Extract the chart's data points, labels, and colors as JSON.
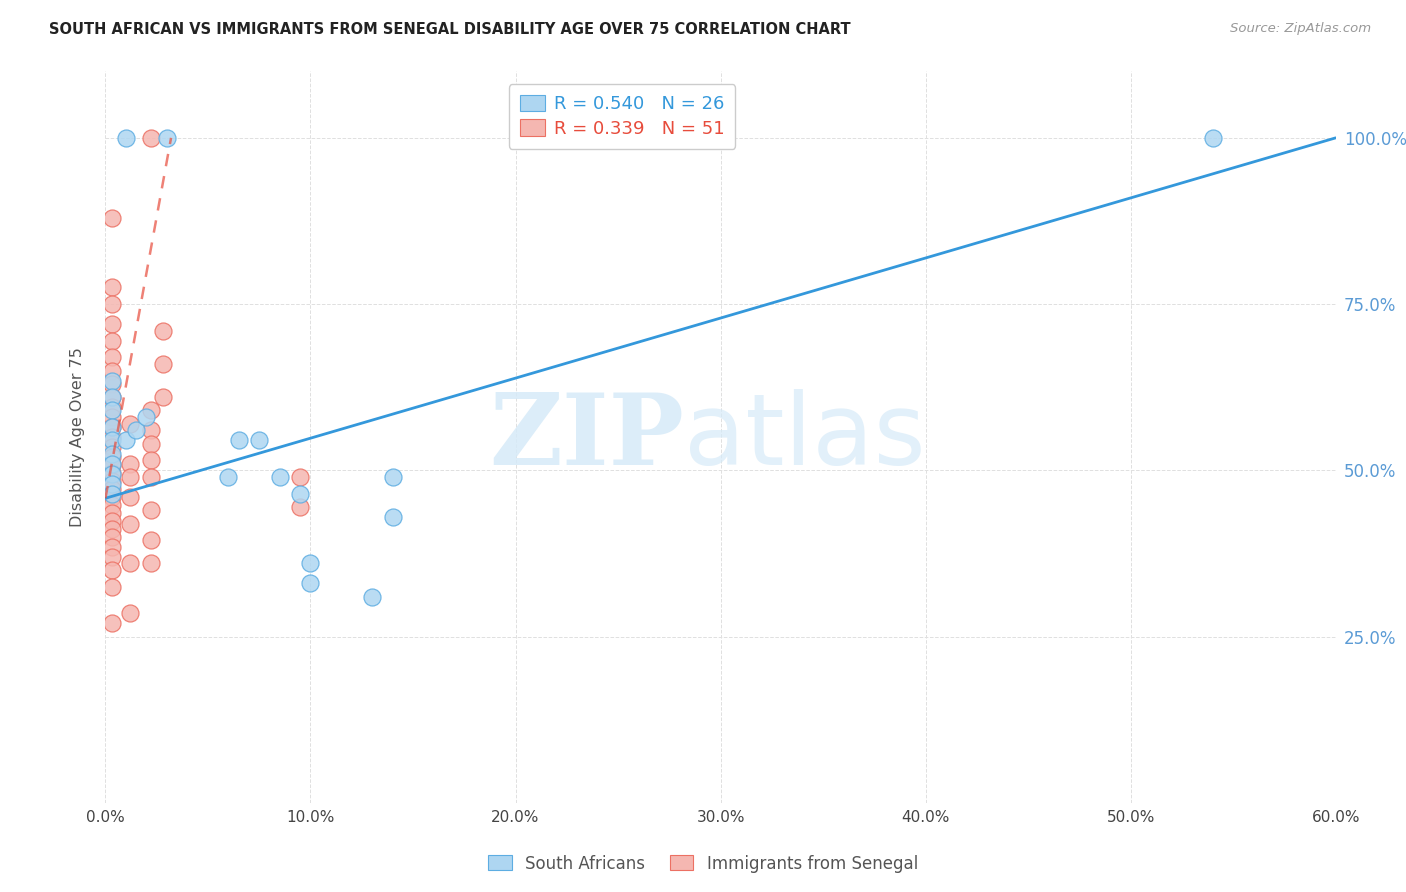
{
  "title": "SOUTH AFRICAN VS IMMIGRANTS FROM SENEGAL DISABILITY AGE OVER 75 CORRELATION CHART",
  "source": "Source: ZipAtlas.com",
  "ylabel": "Disability Age Over 75",
  "x_tick_labels": [
    "0.0%",
    "10.0%",
    "20.0%",
    "30.0%",
    "40.0%",
    "50.0%",
    "60.0%"
  ],
  "y_tick_labels_right": [
    "100.0%",
    "75.0%",
    "50.0%",
    "25.0%"
  ],
  "y_ticks_right": [
    1.0,
    0.75,
    0.5,
    0.25
  ],
  "xlim": [
    0.0,
    0.6
  ],
  "ylim": [
    0.0,
    1.1
  ],
  "legend_bottom": [
    "South Africans",
    "Immigrants from Senegal"
  ],
  "blue_R": 0.54,
  "blue_N": 26,
  "pink_R": 0.339,
  "pink_N": 51,
  "blue_fill_color": "#AED6F1",
  "blue_edge_color": "#5DADE2",
  "pink_fill_color": "#F5B7B1",
  "pink_edge_color": "#EC7063",
  "blue_line_color": "#3498DB",
  "pink_line_color": "#E74C3C",
  "watermark_zip_color": "#D6EAF8",
  "watermark_atlas_color": "#D6EAF8",
  "blue_scatter": [
    [
      0.01,
      1.0
    ],
    [
      0.03,
      1.0
    ],
    [
      0.003,
      0.635
    ],
    [
      0.003,
      0.61
    ],
    [
      0.003,
      0.59
    ],
    [
      0.003,
      0.565
    ],
    [
      0.003,
      0.545
    ],
    [
      0.003,
      0.525
    ],
    [
      0.003,
      0.51
    ],
    [
      0.003,
      0.495
    ],
    [
      0.003,
      0.48
    ],
    [
      0.003,
      0.465
    ],
    [
      0.01,
      0.545
    ],
    [
      0.015,
      0.56
    ],
    [
      0.02,
      0.58
    ],
    [
      0.065,
      0.545
    ],
    [
      0.075,
      0.545
    ],
    [
      0.14,
      0.49
    ],
    [
      0.095,
      0.465
    ],
    [
      0.14,
      0.43
    ],
    [
      0.06,
      0.49
    ],
    [
      0.085,
      0.49
    ],
    [
      0.1,
      0.36
    ],
    [
      0.1,
      0.33
    ],
    [
      0.13,
      0.31
    ],
    [
      0.54,
      1.0
    ]
  ],
  "pink_scatter": [
    [
      0.003,
      0.88
    ],
    [
      0.003,
      0.775
    ],
    [
      0.003,
      0.75
    ],
    [
      0.003,
      0.72
    ],
    [
      0.003,
      0.695
    ],
    [
      0.003,
      0.67
    ],
    [
      0.003,
      0.65
    ],
    [
      0.003,
      0.63
    ],
    [
      0.003,
      0.61
    ],
    [
      0.003,
      0.595
    ],
    [
      0.003,
      0.58
    ],
    [
      0.003,
      0.565
    ],
    [
      0.003,
      0.55
    ],
    [
      0.003,
      0.535
    ],
    [
      0.003,
      0.52
    ],
    [
      0.003,
      0.508
    ],
    [
      0.003,
      0.496
    ],
    [
      0.003,
      0.484
    ],
    [
      0.003,
      0.472
    ],
    [
      0.003,
      0.46
    ],
    [
      0.003,
      0.448
    ],
    [
      0.003,
      0.436
    ],
    [
      0.003,
      0.424
    ],
    [
      0.003,
      0.412
    ],
    [
      0.003,
      0.4
    ],
    [
      0.003,
      0.385
    ],
    [
      0.003,
      0.37
    ],
    [
      0.003,
      0.35
    ],
    [
      0.003,
      0.325
    ],
    [
      0.003,
      0.27
    ],
    [
      0.012,
      0.57
    ],
    [
      0.012,
      0.51
    ],
    [
      0.012,
      0.49
    ],
    [
      0.012,
      0.46
    ],
    [
      0.012,
      0.42
    ],
    [
      0.012,
      0.36
    ],
    [
      0.012,
      0.285
    ],
    [
      0.022,
      0.56
    ],
    [
      0.022,
      0.54
    ],
    [
      0.022,
      0.515
    ],
    [
      0.022,
      0.49
    ],
    [
      0.022,
      0.44
    ],
    [
      0.022,
      0.395
    ],
    [
      0.022,
      0.36
    ],
    [
      0.095,
      0.49
    ],
    [
      0.095,
      0.445
    ],
    [
      0.022,
      0.59
    ],
    [
      0.028,
      0.61
    ],
    [
      0.028,
      0.66
    ],
    [
      0.028,
      0.71
    ],
    [
      0.022,
      1.0
    ]
  ],
  "blue_line": {
    "x0": 0.0,
    "y0": 0.458,
    "x1": 0.6,
    "y1": 1.0
  },
  "pink_line": {
    "x0": 0.0,
    "y0": 0.458,
    "x1": 0.032,
    "y1": 1.0
  },
  "background_color": "#FFFFFF",
  "grid_color": "#E0E0E0"
}
